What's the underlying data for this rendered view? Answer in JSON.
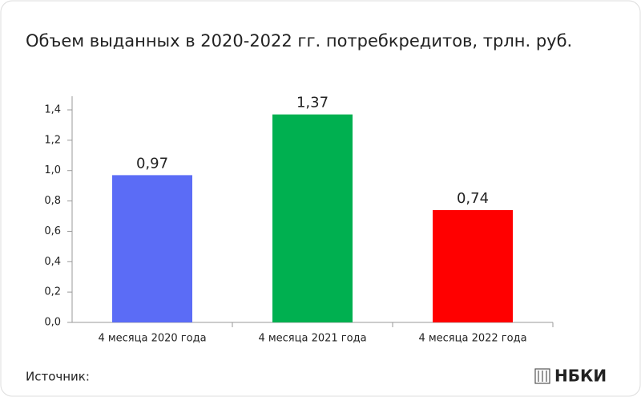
{
  "chart_data": {
    "type": "bar",
    "title": "Объем выданных в 2020-2022 гг. потребкредитов, трлн. руб.",
    "categories": [
      "4 месяца 2020 года",
      "4 месяца 2021 года",
      "4 месяца 2022 года"
    ],
    "values": [
      0.97,
      1.37,
      0.74
    ],
    "value_labels": [
      "0,97",
      "1,37",
      "0,74"
    ],
    "colors": [
      "#5b6cf6",
      "#00b050",
      "#ff0000"
    ],
    "ylim": [
      0,
      1.4
    ],
    "yticks": [
      {
        "value": 0,
        "label": "0,0"
      },
      {
        "value": 0.2,
        "label": "0,2"
      },
      {
        "value": 0.4,
        "label": "0,4"
      },
      {
        "value": 0.6,
        "label": "0,6"
      },
      {
        "value": 0.8,
        "label": "0,8"
      },
      {
        "value": 1.0,
        "label": "1,0"
      },
      {
        "value": 1.2,
        "label": "1,2"
      },
      {
        "value": 1.4,
        "label": "1,4"
      }
    ],
    "source": "Источник:",
    "logo": "НБКИ"
  }
}
